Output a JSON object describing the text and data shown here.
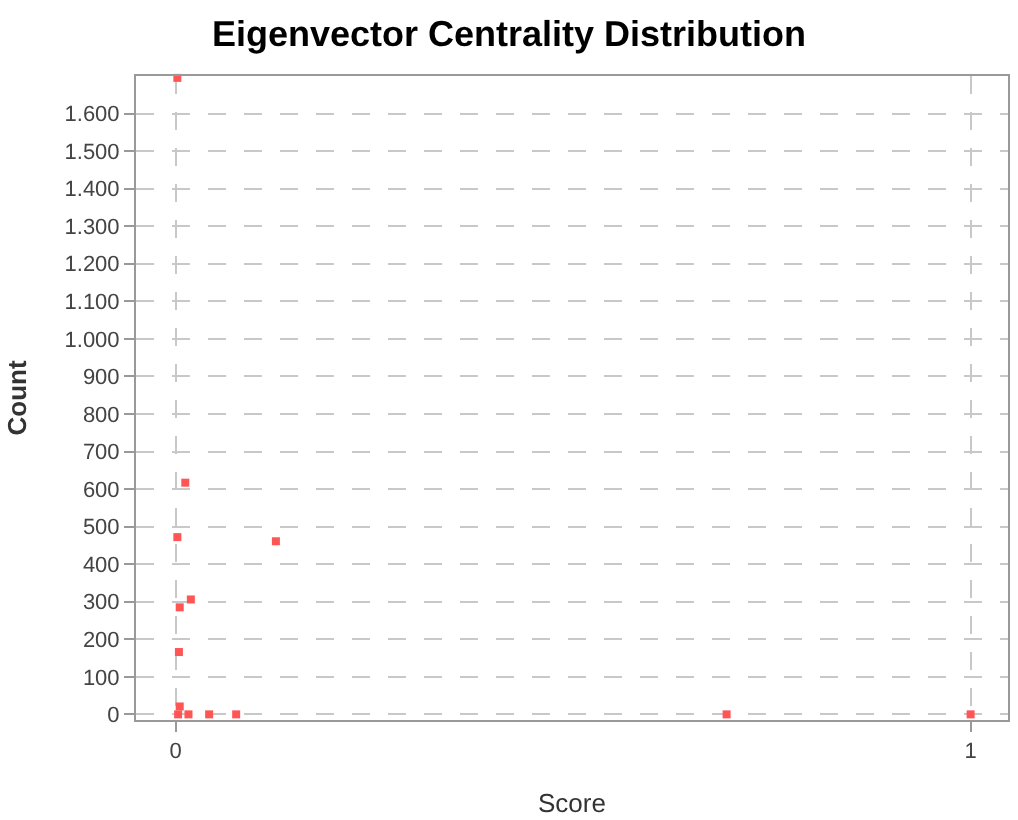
{
  "chart_data": {
    "type": "scatter",
    "title": "Eigenvector Centrality Distribution",
    "xlabel": "Score",
    "ylabel": "Count",
    "x": [
      0.002,
      0.012,
      0.002,
      0.126,
      0.019,
      0.005,
      0.004,
      0.005,
      0.003,
      0.016,
      0.042,
      0.076,
      0.693,
      1.0
    ],
    "series": [
      {
        "color": "#ff5555",
        "values": [
          1695,
          617,
          472,
          461,
          306,
          285,
          166,
          21,
          0,
          0,
          0,
          0,
          0,
          0
        ]
      }
    ],
    "xlim": [
      -0.05,
      1.047
    ],
    "xticks": [
      0,
      1
    ],
    "ylim": [
      -15,
      1700
    ],
    "yticks": [
      0,
      100,
      200,
      300,
      400,
      500,
      600,
      700,
      800,
      900,
      {
        "value": 1000,
        "label": "1.000"
      },
      {
        "value": 1100,
        "label": "1.100"
      },
      {
        "value": 1200,
        "label": "1.200"
      },
      {
        "value": 1300,
        "label": "1.300"
      },
      {
        "value": 1400,
        "label": "1.400"
      },
      {
        "value": 1500,
        "label": "1.500"
      },
      {
        "value": 1600,
        "label": "1.600"
      }
    ],
    "grid": true,
    "legend": false,
    "marker": "square"
  }
}
